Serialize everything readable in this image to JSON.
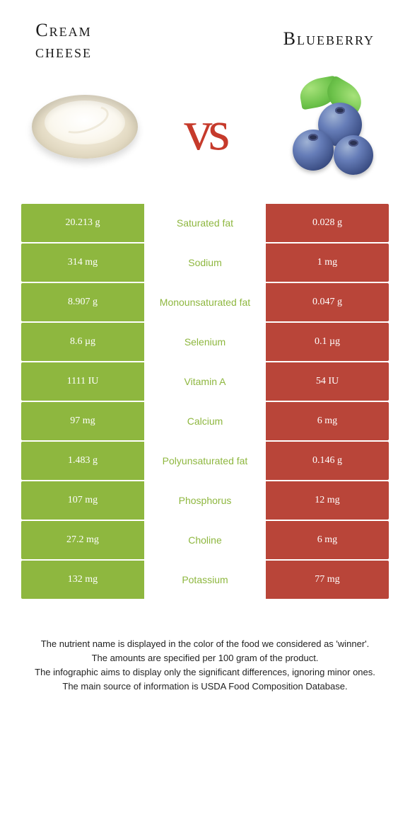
{
  "colors": {
    "left": "#8eb73f",
    "right": "#b94539",
    "vs": "#c63a2b",
    "background": "#ffffff"
  },
  "header": {
    "left_title_l1": "Cream",
    "left_title_l2": "cheese",
    "right_title": "Blueberry"
  },
  "vs_text": "vs",
  "rows": [
    {
      "left": "20.213 g",
      "label": "Saturated fat",
      "right": "0.028 g",
      "winner": "left"
    },
    {
      "left": "314 mg",
      "label": "Sodium",
      "right": "1 mg",
      "winner": "left"
    },
    {
      "left": "8.907 g",
      "label": "Monounsaturated fat",
      "right": "0.047 g",
      "winner": "left"
    },
    {
      "left": "8.6 µg",
      "label": "Selenium",
      "right": "0.1 µg",
      "winner": "left"
    },
    {
      "left": "1111 IU",
      "label": "Vitamin A",
      "right": "54 IU",
      "winner": "left"
    },
    {
      "left": "97 mg",
      "label": "Calcium",
      "right": "6 mg",
      "winner": "left"
    },
    {
      "left": "1.483 g",
      "label": "Polyunsaturated fat",
      "right": "0.146 g",
      "winner": "left"
    },
    {
      "left": "107 mg",
      "label": "Phosphorus",
      "right": "12 mg",
      "winner": "left"
    },
    {
      "left": "27.2 mg",
      "label": "Choline",
      "right": "6 mg",
      "winner": "left"
    },
    {
      "left": "132 mg",
      "label": "Potassium",
      "right": "77 mg",
      "winner": "left"
    }
  ],
  "footer": {
    "l1": "The nutrient name is displayed in the color of the food we considered as 'winner'.",
    "l2": "The amounts are specified per 100 gram of the product.",
    "l3": "The infographic aims to display only the significant differences, ignoring minor ones.",
    "l4": "The main source of information is USDA Food Composition Database."
  }
}
